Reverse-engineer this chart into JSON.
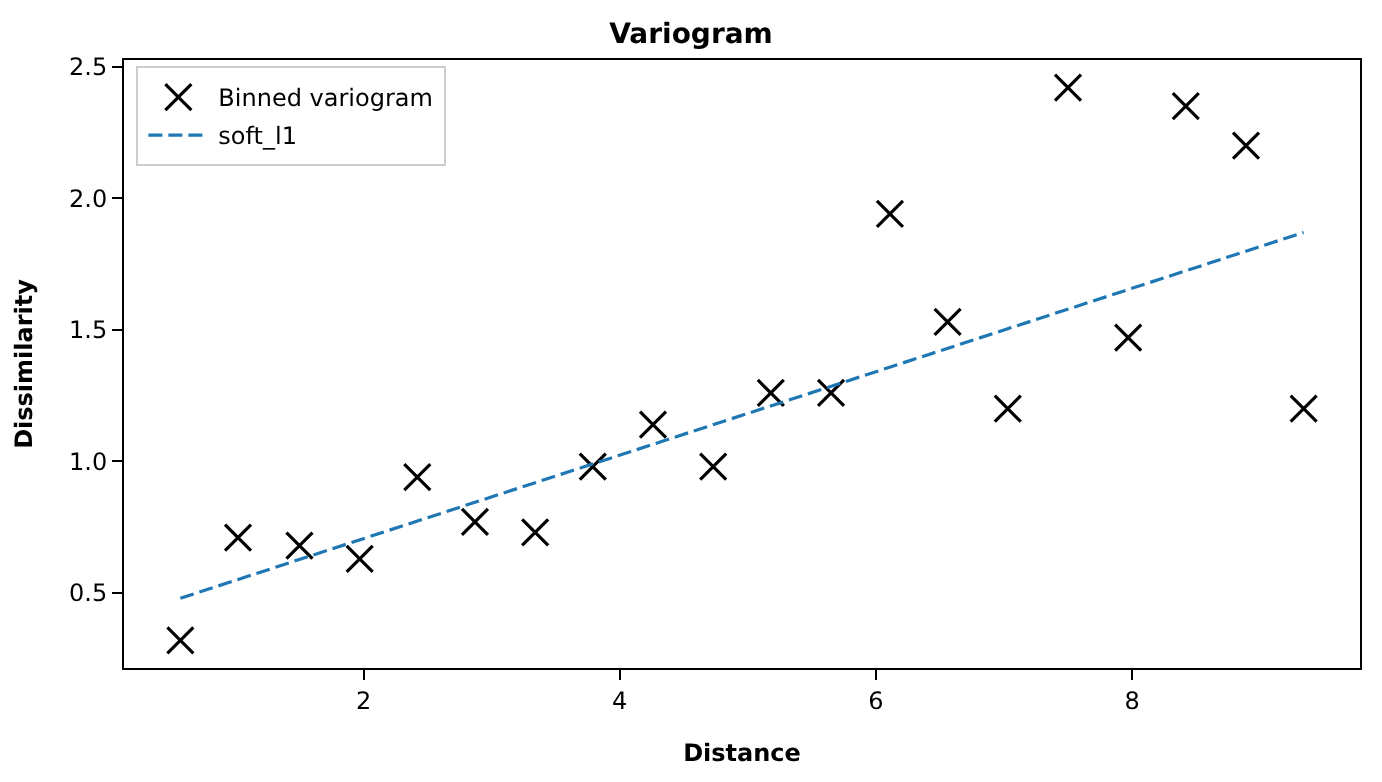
{
  "chart_data": {
    "type": "scatter",
    "title": "Variogram",
    "xlabel": "Distance",
    "ylabel": "Dissimilarity",
    "xlim": [
      0.13,
      9.78
    ],
    "ylim": [
      0.215,
      2.525
    ],
    "xticks": [
      2,
      4,
      6,
      8
    ],
    "yticks": [
      {
        "value": 0.5,
        "label": "0.5"
      },
      {
        "value": 1.0,
        "label": "1.0"
      },
      {
        "value": 1.5,
        "label": "1.5"
      },
      {
        "value": 2.0,
        "label": "2.0"
      },
      {
        "value": 2.5,
        "label": "2.5"
      }
    ],
    "legend": "top left",
    "series": [
      {
        "name": "Binned variogram",
        "marker": "cross",
        "color": "#000000",
        "x": [
          0.57,
          1.02,
          1.5,
          1.97,
          2.42,
          2.87,
          3.34,
          3.79,
          4.26,
          4.73,
          5.18,
          5.65,
          6.11,
          6.56,
          7.03,
          7.5,
          7.97,
          8.42,
          8.89,
          9.34
        ],
        "values": [
          0.32,
          0.71,
          0.68,
          0.63,
          0.94,
          0.77,
          0.73,
          0.98,
          1.14,
          0.98,
          1.26,
          1.26,
          1.94,
          1.53,
          1.2,
          2.42,
          1.47,
          2.35,
          2.2,
          1.2
        ]
      },
      {
        "name": "soft_l1",
        "type": "line",
        "line_style": "dashed",
        "color": "#1f77b4",
        "x": [
          0.57,
          9.34
        ],
        "values": [
          0.48,
          1.87
        ]
      }
    ]
  }
}
